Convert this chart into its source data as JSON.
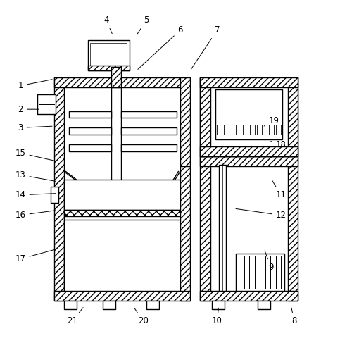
{
  "fig_width": 4.83,
  "fig_height": 4.87,
  "dpi": 100,
  "bg_color": "#ffffff",
  "line_color": "#000000",
  "lw": 1.0,
  "label_positions": {
    "1": [
      0.055,
      0.755,
      0.155,
      0.775
    ],
    "2": [
      0.055,
      0.685,
      0.115,
      0.685
    ],
    "3": [
      0.055,
      0.63,
      0.155,
      0.635
    ],
    "4": [
      0.31,
      0.95,
      0.33,
      0.905
    ],
    "5": [
      0.43,
      0.95,
      0.4,
      0.905
    ],
    "6": [
      0.53,
      0.92,
      0.4,
      0.8
    ],
    "7": [
      0.64,
      0.92,
      0.56,
      0.8
    ],
    "8": [
      0.87,
      0.055,
      0.86,
      0.1
    ],
    "9": [
      0.8,
      0.215,
      0.78,
      0.27
    ],
    "10": [
      0.64,
      0.055,
      0.645,
      0.1
    ],
    "11": [
      0.83,
      0.43,
      0.8,
      0.48
    ],
    "12": [
      0.83,
      0.37,
      0.69,
      0.39
    ],
    "13": [
      0.055,
      0.49,
      0.165,
      0.47
    ],
    "14": [
      0.055,
      0.43,
      0.165,
      0.435
    ],
    "15": [
      0.055,
      0.555,
      0.165,
      0.53
    ],
    "16": [
      0.055,
      0.37,
      0.165,
      0.385
    ],
    "17": [
      0.055,
      0.24,
      0.165,
      0.27
    ],
    "18": [
      0.83,
      0.58,
      0.8,
      0.59
    ],
    "19": [
      0.81,
      0.65,
      0.78,
      0.635
    ],
    "20": [
      0.42,
      0.055,
      0.39,
      0.1
    ],
    "21": [
      0.21,
      0.055,
      0.245,
      0.1
    ]
  }
}
